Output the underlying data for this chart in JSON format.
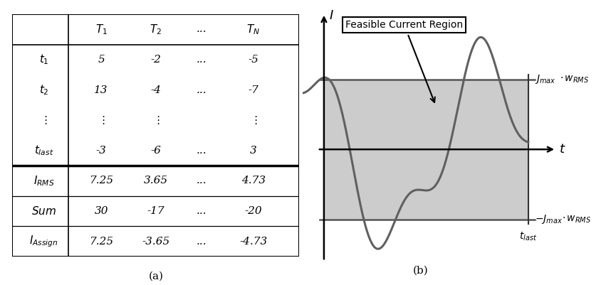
{
  "table": {
    "col_headers": [
      "",
      "$T_1$",
      "$T_2$",
      "...",
      "$T_N$"
    ],
    "rows": [
      [
        "$t_1$",
        "5",
        "-2",
        "...",
        "-5"
      ],
      [
        "$t_2$",
        "13",
        "-4",
        "...",
        "-7"
      ],
      [
        "$\\vdots$",
        "$\\vdots$",
        "$\\vdots$",
        "",
        "$\\vdots$"
      ],
      [
        "$t_{last}$",
        "-3",
        "-6",
        "...",
        "3"
      ]
    ],
    "bottom_rows": [
      [
        "$I_{RMS}$",
        "7.25",
        "3.65",
        "...",
        "4.73"
      ],
      [
        "$Sum$",
        "30",
        "-17",
        "...",
        "-20"
      ],
      [
        "$I_{Assign}$",
        "7.25",
        "-3.65",
        "...",
        "-4.73"
      ]
    ]
  },
  "plot": {
    "jmax_label": "$J_{max}$",
    "jmax_label2": "$\\cdot w_{RMS}$",
    "neg_jmax_label": "$-J_{max}$",
    "neg_jmax_label2": "$\\cdot w_{RMS}$",
    "t_label": "$t$",
    "I_label": "$I$",
    "t_last_label": "$t_{last}$",
    "feasible_label": "Feasible Current Region",
    "jmax": 0.72,
    "bg_color": "#cccccc",
    "line_color": "#606060",
    "caption_a": "(a)",
    "caption_b": "(b)"
  }
}
